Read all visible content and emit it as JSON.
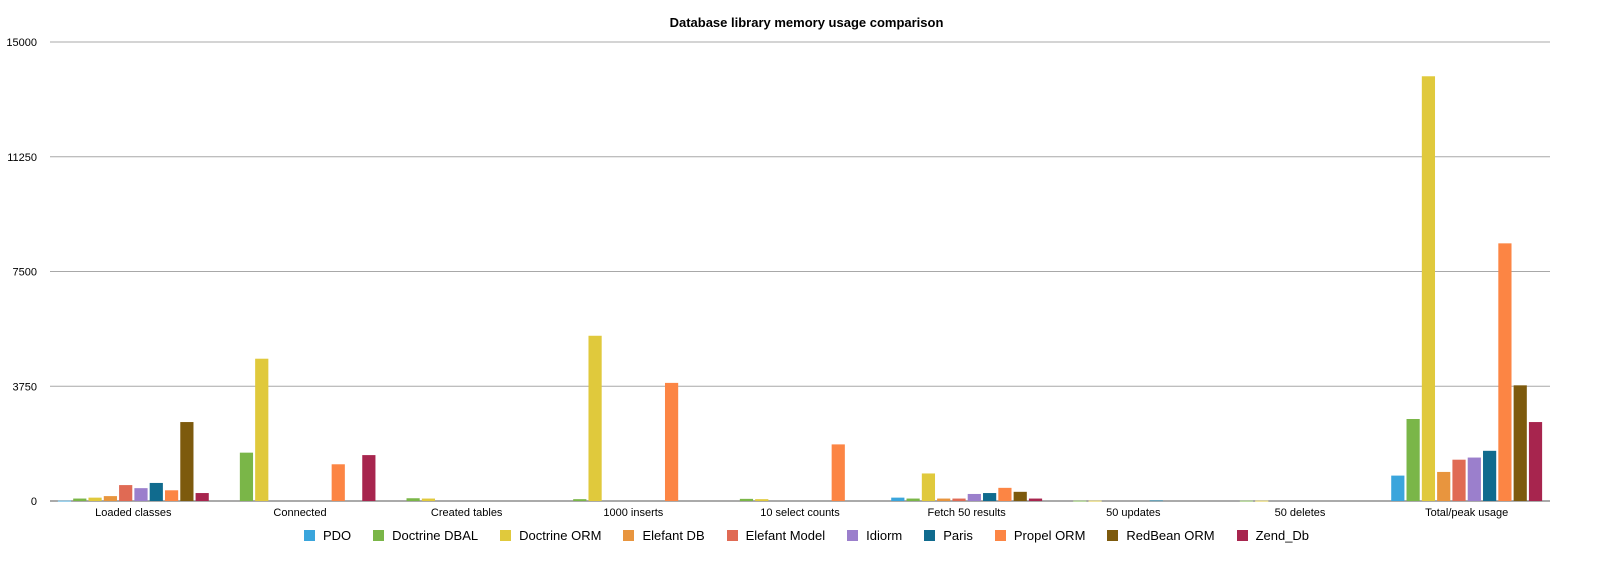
{
  "chart_data": {
    "type": "bar",
    "title": "Database library memory usage comparison",
    "xlabel": "",
    "ylabel": "",
    "ylim": [
      0,
      15000
    ],
    "yticks": [
      0,
      3750,
      7500,
      11250,
      15000
    ],
    "grid": true,
    "legend_position": "bottom",
    "categories": [
      "Loaded classes",
      "Connected",
      "Created tables",
      "1000 inserts",
      "10 select counts",
      "Fetch 50 results",
      "50 updates",
      "50 deletes",
      "Total/peak usage"
    ],
    "series": [
      {
        "name": "PDO",
        "color": "#3aa5dc",
        "values": [
          10,
          0,
          0,
          0,
          0,
          110,
          0,
          0,
          830
        ]
      },
      {
        "name": "Doctrine DBAL",
        "color": "#7ab648",
        "values": [
          80,
          1580,
          90,
          60,
          70,
          80,
          10,
          10,
          2680
        ]
      },
      {
        "name": "Doctrine ORM",
        "color": "#e0c93c",
        "values": [
          110,
          4650,
          80,
          5400,
          60,
          900,
          10,
          10,
          13880
        ]
      },
      {
        "name": "Elefant DB",
        "color": "#e8953e",
        "values": [
          160,
          0,
          0,
          0,
          0,
          80,
          0,
          0,
          950
        ]
      },
      {
        "name": "Elefant Model",
        "color": "#e06a54",
        "values": [
          520,
          0,
          0,
          0,
          0,
          80,
          0,
          0,
          1350
        ]
      },
      {
        "name": "Idiorm",
        "color": "#9b7fcc",
        "values": [
          420,
          0,
          0,
          0,
          0,
          230,
          0,
          0,
          1420
        ]
      },
      {
        "name": "Paris",
        "color": "#106b8e",
        "values": [
          590,
          0,
          0,
          0,
          0,
          260,
          20,
          0,
          1640
        ]
      },
      {
        "name": "Propel ORM",
        "color": "#fc8544",
        "values": [
          350,
          1200,
          0,
          3860,
          1850,
          430,
          0,
          0,
          8420
        ]
      },
      {
        "name": "RedBean ORM",
        "color": "#7d5a0d",
        "values": [
          2580,
          0,
          0,
          0,
          0,
          300,
          0,
          0,
          3780
        ]
      },
      {
        "name": "Zend_Db",
        "color": "#a7254e",
        "values": [
          260,
          1500,
          0,
          0,
          0,
          80,
          0,
          0,
          2580
        ]
      }
    ]
  }
}
